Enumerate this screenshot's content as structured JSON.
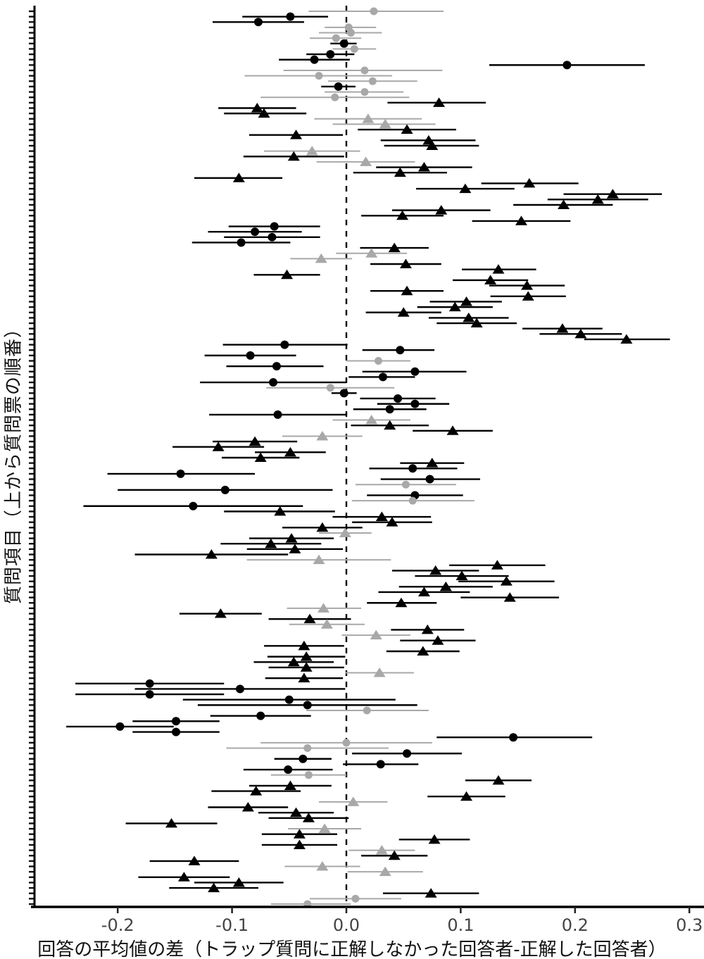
{
  "chart_data": {
    "type": "scatter",
    "variant": "forest-dot-whisker",
    "title": "",
    "xlabel": "回答の平均値の差（トラップ質問に正解しなかった回答者-正解した回答者）",
    "ylabel": "質問項目（上から質問票の順番）",
    "xlim": [
      -0.27,
      0.31
    ],
    "x_tick_values": [
      -0.2,
      -0.1,
      0.0,
      0.1,
      0.2,
      0.3
    ],
    "x_tick_labels": [
      "-0.2",
      "-0.1",
      "0.0",
      "0.1",
      "0.2",
      "0.3"
    ],
    "y_axis_items": "167 question items, unlabeled tick per item, ordered top to bottom",
    "reference_line_x": 0.0,
    "grid": false,
    "legend": "none",
    "colors": {
      "black": "#000000",
      "gray": "#a8a8a8"
    },
    "point_format": [
      "shape c=circle t=triangle",
      "color b=black g=gray",
      "estimate",
      "ci_low",
      "ci_high"
    ],
    "points": [
      [
        "c",
        "g",
        0.024,
        -0.033,
        0.085
      ],
      [
        "c",
        "b",
        -0.049,
        -0.091,
        -0.016
      ],
      [
        "c",
        "b",
        -0.077,
        -0.117,
        -0.037
      ],
      [
        "c",
        "g",
        0.002,
        -0.019,
        0.026
      ],
      [
        "c",
        "g",
        0.004,
        -0.024,
        0.031
      ],
      [
        "c",
        "g",
        -0.009,
        -0.032,
        0.013
      ],
      [
        "c",
        "b",
        -0.002,
        -0.014,
        0.009
      ],
      [
        "c",
        "g",
        0.007,
        -0.012,
        0.026
      ],
      [
        "c",
        "b",
        -0.014,
        -0.035,
        0.007
      ],
      [
        "c",
        "b",
        -0.028,
        -0.059,
        0.003
      ],
      [
        "c",
        "b",
        0.193,
        0.125,
        0.261
      ],
      [
        "c",
        "g",
        0.016,
        -0.055,
        0.084
      ],
      [
        "c",
        "g",
        -0.024,
        -0.089,
        0.04
      ],
      [
        "c",
        "g",
        0.023,
        -0.016,
        0.062
      ],
      [
        "c",
        "b",
        -0.007,
        -0.022,
        0.008
      ],
      [
        "c",
        "g",
        0.016,
        -0.019,
        0.05
      ],
      [
        "c",
        "g",
        -0.01,
        -0.075,
        0.055
      ],
      [
        "t",
        "b",
        0.081,
        0.036,
        0.122
      ],
      [
        "t",
        "b",
        -0.078,
        -0.112,
        -0.044
      ],
      [
        "t",
        "b",
        -0.072,
        -0.107,
        -0.035
      ],
      [
        "t",
        "g",
        0.019,
        -0.028,
        0.066
      ],
      [
        "t",
        "g",
        0.034,
        -0.012,
        0.078
      ],
      [
        "t",
        "b",
        0.053,
        0.01,
        0.096
      ],
      [
        "t",
        "b",
        -0.044,
        -0.085,
        -0.003
      ],
      [
        "t",
        "b",
        0.072,
        0.03,
        0.113
      ],
      [
        "t",
        "b",
        0.075,
        0.033,
        0.116
      ],
      [
        "t",
        "g",
        -0.03,
        -0.072,
        0.012
      ],
      [
        "t",
        "b",
        -0.046,
        -0.09,
        -0.002
      ],
      [
        "t",
        "g",
        0.017,
        -0.026,
        0.06
      ],
      [
        "t",
        "b",
        0.068,
        0.026,
        0.11
      ],
      [
        "t",
        "b",
        0.047,
        0.006,
        0.088
      ],
      [
        "t",
        "b",
        -0.094,
        -0.133,
        -0.056
      ],
      [
        "t",
        "b",
        0.16,
        0.118,
        0.203
      ],
      [
        "t",
        "b",
        0.104,
        0.061,
        0.147
      ],
      [
        "t",
        "b",
        0.233,
        0.19,
        0.276
      ],
      [
        "t",
        "b",
        0.22,
        0.176,
        0.264
      ],
      [
        "t",
        "b",
        0.19,
        0.146,
        0.233
      ],
      [
        "t",
        "b",
        0.083,
        0.04,
        0.126
      ],
      [
        "t",
        "b",
        0.049,
        0.013,
        0.085
      ],
      [
        "t",
        "b",
        0.153,
        0.11,
        0.196
      ],
      [
        "c",
        "b",
        -0.063,
        -0.103,
        -0.023
      ],
      [
        "c",
        "b",
        -0.08,
        -0.121,
        -0.039
      ],
      [
        "c",
        "b",
        -0.065,
        -0.107,
        -0.023
      ],
      [
        "c",
        "b",
        -0.092,
        -0.135,
        -0.049
      ],
      [
        "t",
        "b",
        0.042,
        0.012,
        0.072
      ],
      [
        "t",
        "g",
        0.022,
        -0.009,
        0.053
      ],
      [
        "t",
        "g",
        -0.022,
        -0.049,
        0.005
      ],
      [
        "t",
        "b",
        0.052,
        0.021,
        0.083
      ],
      [
        "t",
        "b",
        0.133,
        0.101,
        0.166
      ],
      [
        "t",
        "b",
        -0.052,
        -0.081,
        -0.023
      ],
      [
        "t",
        "b",
        0.126,
        0.093,
        0.159
      ],
      [
        "t",
        "b",
        0.158,
        0.125,
        0.191
      ],
      [
        "t",
        "b",
        0.053,
        0.021,
        0.085
      ],
      [
        "t",
        "b",
        0.159,
        0.126,
        0.192
      ],
      [
        "t",
        "b",
        0.105,
        0.073,
        0.136
      ],
      [
        "t",
        "b",
        0.095,
        0.062,
        0.128
      ],
      [
        "t",
        "b",
        0.05,
        0.017,
        0.083
      ],
      [
        "t",
        "b",
        0.107,
        0.072,
        0.142
      ],
      [
        "t",
        "b",
        0.114,
        0.079,
        0.149
      ],
      [
        "t",
        "b",
        0.189,
        0.154,
        0.224
      ],
      [
        "t",
        "b",
        0.205,
        0.169,
        0.241
      ],
      [
        "t",
        "b",
        0.245,
        0.208,
        0.283
      ],
      [
        "c",
        "b",
        -0.054,
        -0.108,
        0.001
      ],
      [
        "c",
        "b",
        0.047,
        0.014,
        0.077
      ],
      [
        "c",
        "b",
        -0.084,
        -0.124,
        -0.044
      ],
      [
        "c",
        "g",
        0.028,
        0.0,
        0.056
      ],
      [
        "c",
        "b",
        -0.061,
        -0.105,
        -0.02
      ],
      [
        "c",
        "b",
        0.06,
        0.014,
        0.105
      ],
      [
        "c",
        "b",
        0.032,
        0.002,
        0.06
      ],
      [
        "c",
        "b",
        -0.064,
        -0.128,
        0.0
      ],
      [
        "c",
        "g",
        -0.014,
        -0.07,
        0.042
      ],
      [
        "c",
        "b",
        -0.002,
        -0.013,
        0.009
      ],
      [
        "c",
        "b",
        0.045,
        0.012,
        0.078
      ],
      [
        "c",
        "b",
        0.06,
        0.027,
        0.09
      ],
      [
        "c",
        "b",
        0.038,
        0.006,
        0.07
      ],
      [
        "c",
        "b",
        -0.06,
        -0.12,
        0.0
      ],
      [
        "t",
        "g",
        0.022,
        -0.012,
        0.056
      ],
      [
        "t",
        "b",
        0.038,
        0.004,
        0.072
      ],
      [
        "t",
        "b",
        0.093,
        0.058,
        0.128
      ],
      [
        "t",
        "g",
        -0.021,
        -0.056,
        0.014
      ],
      [
        "t",
        "b",
        -0.08,
        -0.117,
        -0.043
      ],
      [
        "t",
        "b",
        -0.112,
        -0.152,
        -0.072
      ],
      [
        "t",
        "b",
        -0.049,
        -0.08,
        -0.018
      ],
      [
        "t",
        "b",
        -0.075,
        -0.109,
        -0.041
      ],
      [
        "t",
        "b",
        0.075,
        0.047,
        0.103
      ],
      [
        "c",
        "b",
        0.058,
        0.02,
        0.097
      ],
      [
        "c",
        "b",
        -0.145,
        -0.209,
        -0.08
      ],
      [
        "c",
        "b",
        0.073,
        0.03,
        0.117
      ],
      [
        "c",
        "g",
        0.052,
        0.008,
        0.096
      ],
      [
        "c",
        "b",
        -0.106,
        -0.2,
        -0.012
      ],
      [
        "c",
        "b",
        0.06,
        0.018,
        0.102
      ],
      [
        "c",
        "g",
        0.058,
        0.005,
        0.112
      ],
      [
        "c",
        "b",
        -0.134,
        -0.23,
        -0.038
      ],
      [
        "t",
        "b",
        -0.058,
        -0.107,
        -0.01
      ],
      [
        "t",
        "b",
        0.031,
        -0.012,
        0.074
      ],
      [
        "t",
        "b",
        0.04,
        0.005,
        0.075
      ],
      [
        "t",
        "b",
        -0.021,
        -0.056,
        0.014
      ],
      [
        "t",
        "g",
        -0.001,
        -0.024,
        0.022
      ],
      [
        "t",
        "b",
        -0.048,
        -0.085,
        -0.011
      ],
      [
        "t",
        "b",
        -0.066,
        -0.11,
        -0.022
      ],
      [
        "t",
        "b",
        -0.045,
        -0.087,
        -0.003
      ],
      [
        "t",
        "b",
        -0.118,
        -0.185,
        -0.051
      ],
      [
        "t",
        "g",
        -0.024,
        -0.087,
        0.039
      ],
      [
        "t",
        "b",
        0.132,
        0.09,
        0.174
      ],
      [
        "t",
        "b",
        0.078,
        0.04,
        0.116
      ],
      [
        "t",
        "b",
        0.101,
        0.06,
        0.142
      ],
      [
        "t",
        "b",
        0.14,
        0.098,
        0.182
      ],
      [
        "t",
        "b",
        0.087,
        0.046,
        0.128
      ],
      [
        "t",
        "b",
        0.068,
        0.028,
        0.108
      ],
      [
        "t",
        "b",
        0.143,
        0.1,
        0.186
      ],
      [
        "t",
        "b",
        0.048,
        0.018,
        0.079
      ],
      [
        "t",
        "g",
        -0.02,
        -0.052,
        0.013
      ],
      [
        "t",
        "b",
        -0.11,
        -0.146,
        -0.074
      ],
      [
        "t",
        "b",
        -0.032,
        -0.068,
        0.004
      ],
      [
        "t",
        "g",
        -0.017,
        -0.05,
        0.016
      ],
      [
        "t",
        "b",
        0.071,
        0.039,
        0.103
      ],
      [
        "t",
        "g",
        0.026,
        -0.004,
        0.056
      ],
      [
        "t",
        "b",
        0.08,
        0.047,
        0.113
      ],
      [
        "t",
        "b",
        -0.037,
        -0.072,
        -0.002
      ],
      [
        "t",
        "b",
        0.067,
        0.035,
        0.099
      ],
      [
        "t",
        "b",
        -0.035,
        -0.069,
        -0.001
      ],
      [
        "t",
        "b",
        -0.046,
        -0.081,
        -0.011
      ],
      [
        "t",
        "b",
        -0.035,
        -0.068,
        -0.002
      ],
      [
        "t",
        "g",
        0.029,
        -0.001,
        0.059
      ],
      [
        "t",
        "b",
        -0.037,
        -0.071,
        -0.003
      ],
      [
        "c",
        "b",
        -0.172,
        -0.237,
        -0.107
      ],
      [
        "c",
        "b",
        -0.093,
        -0.185,
        -0.001
      ],
      [
        "c",
        "b",
        -0.172,
        -0.237,
        -0.107
      ],
      [
        "c",
        "b",
        -0.05,
        -0.143,
        0.043
      ],
      [
        "c",
        "b",
        -0.034,
        -0.13,
        0.062
      ],
      [
        "c",
        "g",
        0.018,
        -0.035,
        0.072
      ],
      [
        "c",
        "b",
        -0.075,
        -0.119,
        -0.031
      ],
      [
        "c",
        "b",
        -0.149,
        -0.187,
        -0.111
      ],
      [
        "c",
        "b",
        -0.198,
        -0.245,
        -0.151
      ],
      [
        "c",
        "b",
        -0.149,
        -0.187,
        -0.111
      ],
      [
        "c",
        "b",
        0.146,
        0.079,
        0.215
      ],
      [
        "c",
        "g",
        0.0,
        -0.075,
        0.075
      ],
      [
        "c",
        "g",
        -0.034,
        -0.105,
        0.037
      ],
      [
        "c",
        "b",
        0.053,
        0.005,
        0.101
      ],
      [
        "c",
        "b",
        -0.038,
        -0.063,
        -0.013
      ],
      [
        "c",
        "b",
        0.03,
        -0.003,
        0.063
      ],
      [
        "c",
        "b",
        -0.051,
        -0.09,
        -0.012
      ],
      [
        "c",
        "g",
        -0.033,
        -0.066,
        0.0
      ],
      [
        "t",
        "b",
        0.133,
        0.104,
        0.162
      ],
      [
        "t",
        "b",
        -0.049,
        -0.085,
        -0.013
      ],
      [
        "t",
        "b",
        -0.079,
        -0.118,
        -0.04
      ],
      [
        "t",
        "b",
        0.105,
        0.071,
        0.139
      ],
      [
        "t",
        "g",
        0.006,
        -0.024,
        0.036
      ],
      [
        "t",
        "b",
        -0.086,
        -0.121,
        -0.051
      ],
      [
        "t",
        "b",
        -0.044,
        -0.077,
        -0.011
      ],
      [
        "t",
        "b",
        -0.033,
        -0.068,
        0.002
      ],
      [
        "t",
        "b",
        -0.153,
        -0.193,
        -0.113
      ],
      [
        "t",
        "g",
        -0.019,
        -0.051,
        0.013
      ],
      [
        "t",
        "b",
        -0.041,
        -0.074,
        -0.008
      ],
      [
        "t",
        "b",
        0.077,
        0.046,
        0.108
      ],
      [
        "t",
        "b",
        -0.041,
        -0.074,
        -0.008
      ],
      [
        "t",
        "g",
        0.031,
        0.002,
        0.06
      ],
      [
        "t",
        "b",
        0.042,
        0.013,
        0.071
      ],
      [
        "t",
        "b",
        -0.133,
        -0.172,
        -0.094
      ],
      [
        "t",
        "g",
        -0.021,
        -0.054,
        0.012
      ],
      [
        "t",
        "g",
        0.034,
        0.001,
        0.067
      ],
      [
        "t",
        "b",
        -0.142,
        -0.182,
        -0.102
      ],
      [
        "t",
        "b",
        -0.094,
        -0.133,
        -0.055
      ],
      [
        "t",
        "b",
        -0.116,
        -0.155,
        -0.077
      ],
      [
        "t",
        "b",
        0.074,
        0.032,
        0.116
      ],
      [
        "c",
        "g",
        0.008,
        -0.032,
        0.048
      ],
      [
        "c",
        "g",
        -0.034,
        -0.066,
        0.004
      ]
    ]
  }
}
